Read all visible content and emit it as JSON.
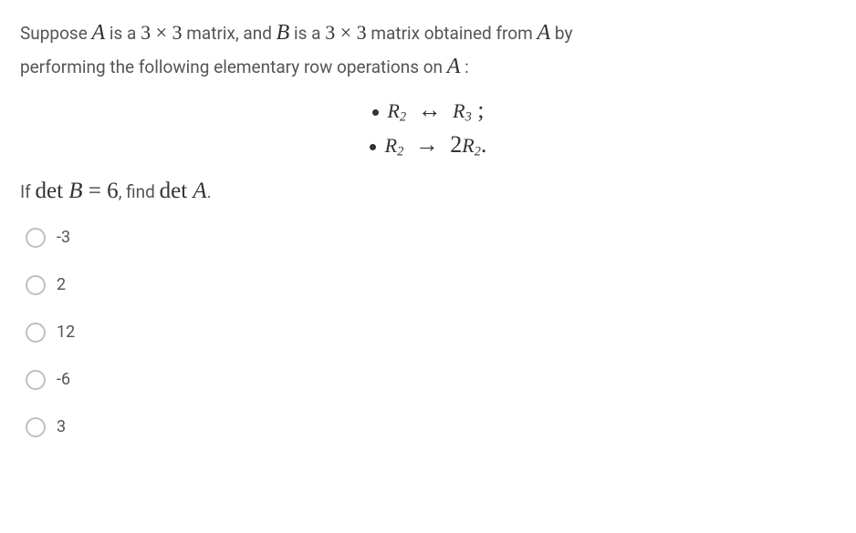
{
  "question": {
    "line1_prefix": "Suppose ",
    "A": "A",
    "is_a": " is a ",
    "dim": "3 × 3",
    "matrix_and": " matrix, and ",
    "B": "B",
    "is_a2": " is a ",
    "dim2": "3 × 3",
    "matrix_obtained": " matrix obtained from ",
    "A2": "A",
    "by": " by",
    "line2": "performing the following elementary row operations on ",
    "A3": "A",
    "colon": " :"
  },
  "operations": {
    "op1": {
      "left": "R",
      "lsub": "2",
      "arrow": "↔",
      "right": "R",
      "rsub": "3",
      "tail": " ;"
    },
    "op2": {
      "left": "R",
      "lsub": "2",
      "arrow": "→",
      "coef": "2",
      "right": "R",
      "rsub": "2",
      "tail": "."
    }
  },
  "detline": {
    "if": "If ",
    "detB": "det B = 6",
    "find": ", find ",
    "detA": "det A",
    "dot": "."
  },
  "choices": [
    {
      "label": "-3"
    },
    {
      "label": "2"
    },
    {
      "label": "12"
    },
    {
      "label": "-6"
    },
    {
      "label": "3"
    }
  ],
  "style": {
    "text_color": "#555",
    "math_color": "#333",
    "radio_border": "#bfbfc4",
    "background": "#ffffff"
  }
}
